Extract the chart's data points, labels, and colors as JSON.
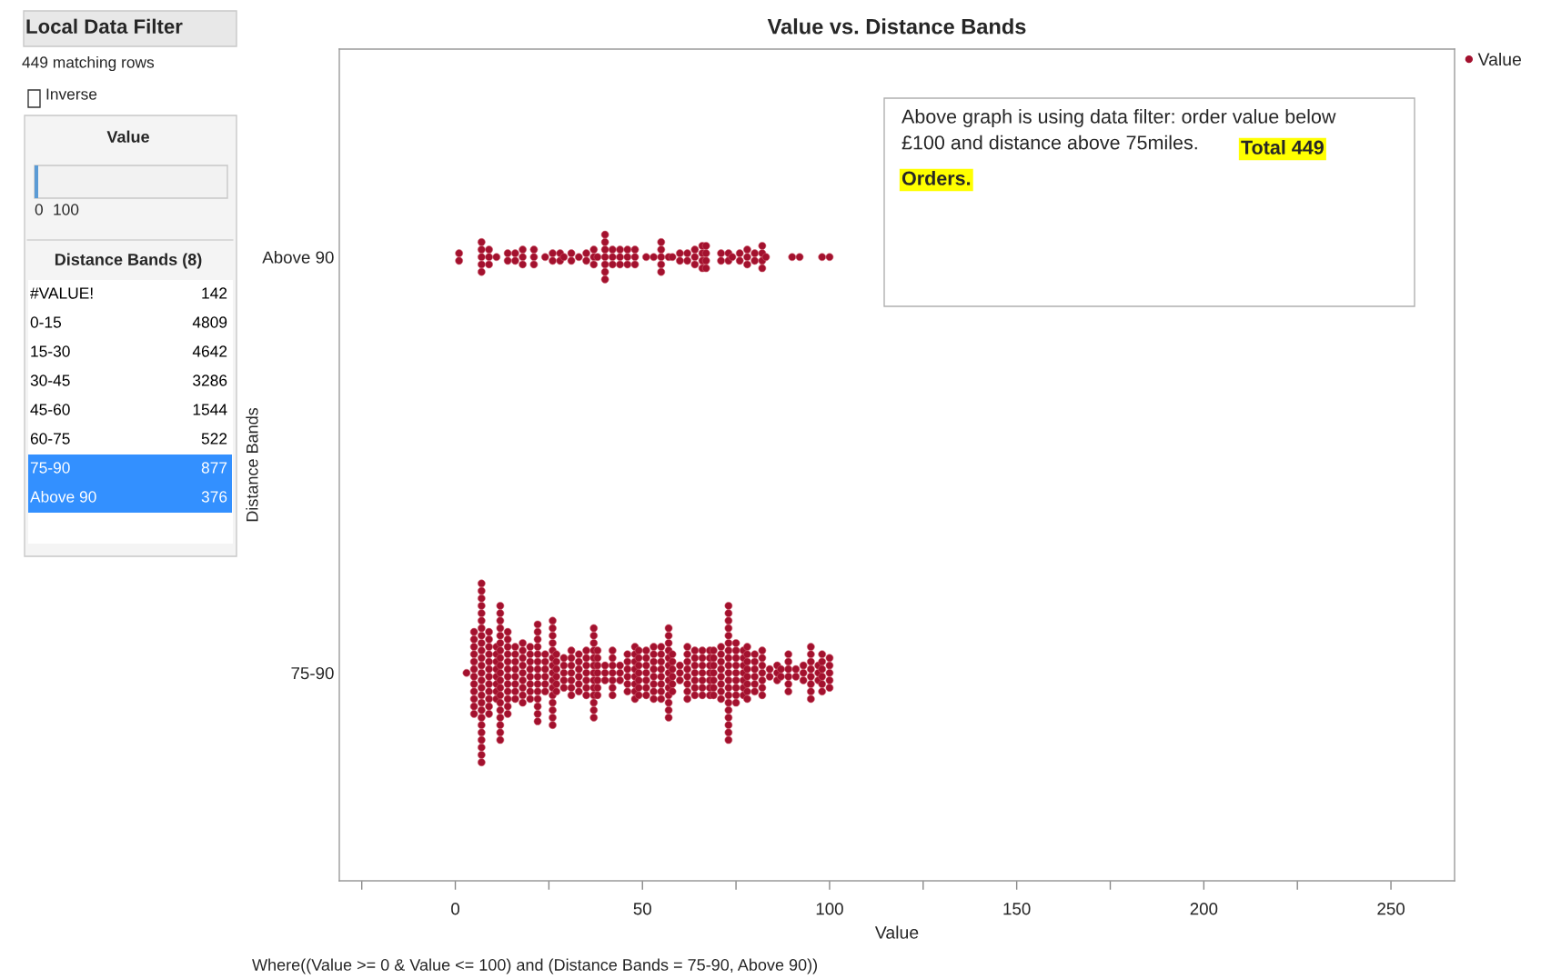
{
  "chart_data": {
    "type": "scatter",
    "orientation": "horizontal",
    "title": "Value vs. Distance Bands",
    "xlabel": "Value",
    "ylabel": "Distance Bands",
    "categories": [
      "Above 90",
      "75-90"
    ],
    "xlim": [
      -31,
      267
    ],
    "xticks": [
      {
        "value": -25,
        "label": null
      },
      0,
      {
        "value": 25,
        "label": null
      },
      50,
      {
        "value": 75,
        "label": null
      },
      100,
      {
        "value": 125,
        "label": null
      },
      150,
      {
        "value": 175,
        "label": null
      },
      200,
      {
        "value": 225,
        "label": null
      },
      250
    ],
    "marker": "circle",
    "legend": "top right",
    "series": [
      {
        "name": "Value",
        "color": "#a3112e",
        "x": [
          "Above 90",
          "Above 90",
          "Above 90",
          "Above 90",
          "Above 90",
          "Above 90",
          "Above 90",
          "Above 90",
          "Above 90",
          "Above 90",
          "Above 90",
          "Above 90",
          "Above 90",
          "Above 90",
          "Above 90",
          "Above 90",
          "Above 90",
          "Above 90",
          "Above 90",
          "Above 90",
          "Above 90",
          "Above 90",
          "Above 90",
          "Above 90",
          "Above 90",
          "Above 90",
          "Above 90",
          "Above 90",
          "Above 90",
          "Above 90",
          "Above 90",
          "Above 90",
          "Above 90",
          "Above 90",
          "Above 90",
          "Above 90",
          "Above 90",
          "Above 90",
          "Above 90",
          "Above 90",
          "Above 90",
          "Above 90",
          "Above 90",
          "Above 90",
          "Above 90",
          "Above 90",
          "Above 90",
          "Above 90",
          "Above 90",
          "Above 90",
          "Above 90",
          "Above 90",
          "Above 90",
          "Above 90",
          "Above 90",
          "Above 90",
          "Above 90",
          "Above 90",
          "Above 90",
          "Above 90",
          "Above 90",
          "Above 90",
          "Above 90",
          "Above 90",
          "Above 90",
          "Above 90",
          "Above 90",
          "Above 90",
          "Above 90",
          "Above 90",
          "Above 90",
          "Above 90",
          "Above 90",
          "Above 90",
          "Above 90",
          "Above 90",
          "Above 90",
          "Above 90",
          "Above 90",
          "Above 90",
          "Above 90",
          "Above 90",
          "Above 90",
          "Above 90",
          "Above 90",
          "Above 90",
          "Above 90",
          "Above 90",
          "Above 90",
          "Above 90",
          "Above 90",
          "Above 90",
          "Above 90",
          "Above 90",
          "Above 90",
          "Above 90",
          "Above 90",
          "Above 90",
          "Above 90",
          "Above 90"
        ],
        "values": [
          1,
          1,
          7,
          7,
          7,
          7,
          7,
          9,
          9,
          9,
          11,
          14,
          14,
          16,
          16,
          18,
          18,
          18,
          21,
          21,
          21,
          24,
          26,
          26,
          28,
          28,
          29,
          31,
          31,
          33,
          35,
          35,
          37,
          37,
          37,
          38,
          40,
          40,
          40,
          40,
          40,
          40,
          40,
          42,
          42,
          42,
          44,
          44,
          44,
          46,
          46,
          46,
          48,
          48,
          48,
          51,
          53,
          55,
          55,
          55,
          55,
          55,
          57,
          58,
          60,
          60,
          62,
          62,
          64,
          64,
          64,
          66,
          66,
          66,
          66,
          67,
          67,
          67,
          67,
          71,
          71,
          73,
          73,
          74,
          76,
          76,
          78,
          78,
          78,
          80,
          80,
          82,
          82,
          82,
          82,
          83,
          90,
          92,
          98,
          100
        ]
      },
      {
        "color": "#a3112e",
        "x": [
          "75-90",
          "75-90",
          "75-90",
          "75-90",
          "75-90",
          "75-90",
          "75-90",
          "75-90",
          "75-90",
          "75-90",
          "75-90",
          "75-90",
          "75-90",
          "75-90",
          "75-90",
          "75-90",
          "75-90",
          "75-90",
          "75-90",
          "75-90",
          "75-90",
          "75-90",
          "75-90",
          "75-90",
          "75-90",
          "75-90",
          "75-90",
          "75-90",
          "75-90",
          "75-90",
          "75-90",
          "75-90",
          "75-90",
          "75-90",
          "75-90",
          "75-90",
          "75-90",
          "75-90",
          "75-90",
          "75-90",
          "75-90",
          "75-90",
          "75-90",
          "75-90",
          "75-90",
          "75-90",
          "75-90",
          "75-90",
          "75-90",
          "75-90",
          "75-90",
          "75-90",
          "75-90",
          "75-90",
          "75-90",
          "75-90",
          "75-90",
          "75-90",
          "75-90",
          "75-90",
          "75-90",
          "75-90",
          "75-90",
          "75-90",
          "75-90",
          "75-90",
          "75-90",
          "75-90",
          "75-90",
          "75-90",
          "75-90",
          "75-90",
          "75-90",
          "75-90",
          "75-90",
          "75-90",
          "75-90",
          "75-90",
          "75-90",
          "75-90",
          "75-90",
          "75-90",
          "75-90",
          "75-90",
          "75-90",
          "75-90",
          "75-90",
          "75-90",
          "75-90",
          "75-90",
          "75-90",
          "75-90",
          "75-90",
          "75-90",
          "75-90",
          "75-90",
          "75-90",
          "75-90",
          "75-90",
          "75-90",
          "75-90",
          "75-90",
          "75-90",
          "75-90",
          "75-90",
          "75-90",
          "75-90",
          "75-90",
          "75-90",
          "75-90",
          "75-90",
          "75-90",
          "75-90",
          "75-90",
          "75-90",
          "75-90",
          "75-90",
          "75-90",
          "75-90",
          "75-90",
          "75-90",
          "75-90",
          "75-90",
          "75-90",
          "75-90",
          "75-90",
          "75-90",
          "75-90",
          "75-90",
          "75-90",
          "75-90",
          "75-90",
          "75-90",
          "75-90",
          "75-90",
          "75-90",
          "75-90",
          "75-90",
          "75-90",
          "75-90",
          "75-90",
          "75-90",
          "75-90",
          "75-90",
          "75-90",
          "75-90",
          "75-90",
          "75-90",
          "75-90",
          "75-90",
          "75-90",
          "75-90",
          "75-90",
          "75-90",
          "75-90",
          "75-90",
          "75-90",
          "75-90",
          "75-90",
          "75-90",
          "75-90",
          "75-90",
          "75-90",
          "75-90",
          "75-90",
          "75-90",
          "75-90",
          "75-90",
          "75-90",
          "75-90",
          "75-90",
          "75-90",
          "75-90",
          "75-90",
          "75-90",
          "75-90",
          "75-90",
          "75-90",
          "75-90",
          "75-90",
          "75-90",
          "75-90",
          "75-90",
          "75-90",
          "75-90",
          "75-90",
          "75-90",
          "75-90",
          "75-90",
          "75-90",
          "75-90",
          "75-90",
          "75-90",
          "75-90",
          "75-90",
          "75-90",
          "75-90",
          "75-90",
          "75-90",
          "75-90",
          "75-90",
          "75-90",
          "75-90",
          "75-90",
          "75-90",
          "75-90",
          "75-90",
          "75-90",
          "75-90",
          "75-90",
          "75-90",
          "75-90",
          "75-90",
          "75-90",
          "75-90",
          "75-90",
          "75-90",
          "75-90",
          "75-90",
          "75-90",
          "75-90",
          "75-90",
          "75-90",
          "75-90",
          "75-90",
          "75-90",
          "75-90",
          "75-90",
          "75-90",
          "75-90",
          "75-90",
          "75-90",
          "75-90",
          "75-90",
          "75-90",
          "75-90",
          "75-90",
          "75-90",
          "75-90",
          "75-90",
          "75-90",
          "75-90",
          "75-90",
          "75-90",
          "75-90",
          "75-90",
          "75-90",
          "75-90",
          "75-90",
          "75-90",
          "75-90",
          "75-90",
          "75-90",
          "75-90",
          "75-90",
          "75-90",
          "75-90",
          "75-90",
          "75-90",
          "75-90",
          "75-90",
          "75-90",
          "75-90",
          "75-90",
          "75-90",
          "75-90",
          "75-90",
          "75-90",
          "75-90",
          "75-90",
          "75-90",
          "75-90",
          "75-90",
          "75-90",
          "75-90",
          "75-90",
          "75-90",
          "75-90",
          "75-90",
          "75-90",
          "75-90",
          "75-90",
          "75-90",
          "75-90",
          "75-90",
          "75-90",
          "75-90",
          "75-90",
          "75-90",
          "75-90",
          "75-90",
          "75-90",
          "75-90",
          "75-90",
          "75-90",
          "75-90",
          "75-90",
          "75-90",
          "75-90",
          "75-90",
          "75-90",
          "75-90",
          "75-90",
          "75-90",
          "75-90",
          "75-90",
          "75-90",
          "75-90",
          "75-90",
          "75-90",
          "75-90",
          "75-90",
          "75-90",
          "75-90",
          "75-90",
          "75-90",
          "75-90",
          "75-90",
          "75-90",
          "75-90",
          "75-90",
          "75-90",
          "75-90",
          "75-90",
          "75-90",
          "75-90",
          "75-90",
          "75-90",
          "75-90",
          "75-90",
          "75-90",
          "75-90",
          "75-90",
          "75-90",
          "75-90",
          "75-90",
          "75-90",
          "75-90",
          "75-90",
          "75-90",
          "75-90",
          "75-90",
          "75-90",
          "75-90",
          "75-90",
          "75-90",
          "75-90",
          "75-90",
          "75-90",
          "75-90",
          "75-90",
          "75-90",
          "75-90",
          "75-90",
          "75-90",
          "75-90",
          "75-90",
          "75-90",
          "75-90",
          "75-90",
          "75-90",
          "75-90",
          "75-90",
          "75-90",
          "75-90",
          "75-90",
          "75-90",
          "75-90",
          "75-90",
          "75-90",
          "75-90",
          "75-90",
          "75-90",
          "75-90",
          "75-90",
          "75-90",
          "75-90",
          "75-90",
          "75-90",
          "75-90",
          "75-90",
          "75-90",
          "75-90",
          "75-90",
          "75-90",
          "75-90",
          "75-90",
          "75-90",
          "75-90",
          "75-90",
          "75-90",
          "75-90",
          "75-90",
          "75-90",
          "75-90",
          "75-90",
          "75-90",
          "75-90",
          "75-90",
          "75-90",
          "75-90",
          "75-90",
          "75-90",
          "75-90",
          "75-90",
          "75-90",
          "75-90",
          "75-90",
          "75-90",
          "75-90",
          "75-90",
          "75-90",
          "75-90",
          "75-90",
          "75-90",
          "75-90",
          "75-90",
          "75-90",
          "75-90"
        ],
        "values": [
          3,
          5,
          5,
          5,
          5,
          5,
          5,
          5,
          5,
          5,
          5,
          5,
          5,
          7,
          7,
          7,
          7,
          7,
          7,
          7,
          7,
          7,
          7,
          7,
          7,
          7,
          7,
          7,
          7,
          7,
          7,
          7,
          7,
          7,
          7,
          7,
          7,
          7,
          9,
          9,
          9,
          9,
          9,
          9,
          9,
          9,
          9,
          9,
          9,
          9,
          11,
          11,
          11,
          11,
          11,
          11,
          11,
          11,
          12,
          12,
          12,
          12,
          12,
          12,
          12,
          12,
          12,
          12,
          12,
          12,
          12,
          12,
          12,
          12,
          12,
          12,
          12,
          14,
          14,
          14,
          14,
          14,
          14,
          14,
          14,
          14,
          14,
          14,
          14,
          16,
          16,
          16,
          16,
          16,
          16,
          16,
          16,
          18,
          18,
          18,
          18,
          18,
          18,
          18,
          18,
          18,
          20,
          20,
          20,
          20,
          20,
          20,
          20,
          20,
          22,
          22,
          22,
          22,
          22,
          22,
          22,
          22,
          22,
          22,
          22,
          22,
          22,
          22,
          24,
          24,
          24,
          24,
          24,
          24,
          26,
          26,
          26,
          26,
          26,
          26,
          26,
          26,
          26,
          26,
          26,
          26,
          26,
          26,
          26,
          27,
          27,
          27,
          27,
          27,
          27,
          29,
          29,
          29,
          29,
          29,
          31,
          31,
          31,
          31,
          31,
          31,
          31,
          33,
          33,
          33,
          33,
          33,
          33,
          35,
          35,
          35,
          35,
          35,
          35,
          35,
          37,
          37,
          37,
          37,
          37,
          37,
          37,
          37,
          37,
          37,
          37,
          37,
          37,
          38,
          38,
          38,
          38,
          38,
          38,
          38,
          40,
          40,
          40,
          42,
          42,
          42,
          42,
          42,
          42,
          42,
          44,
          44,
          44,
          46,
          46,
          46,
          46,
          46,
          46,
          48,
          48,
          48,
          48,
          48,
          48,
          48,
          48,
          49,
          49,
          49,
          49,
          49,
          49,
          49,
          51,
          51,
          51,
          51,
          51,
          51,
          51,
          53,
          53,
          53,
          53,
          53,
          53,
          53,
          53,
          55,
          55,
          55,
          55,
          55,
          55,
          55,
          55,
          57,
          57,
          57,
          57,
          57,
          57,
          57,
          57,
          57,
          57,
          57,
          57,
          57,
          58,
          58,
          58,
          58,
          58,
          58,
          60,
          60,
          60,
          62,
          62,
          62,
          62,
          62,
          62,
          62,
          62,
          64,
          64,
          64,
          64,
          64,
          64,
          64,
          66,
          66,
          66,
          66,
          66,
          66,
          66,
          68,
          68,
          68,
          68,
          68,
          68,
          68,
          69,
          69,
          69,
          69,
          69,
          69,
          69,
          71,
          71,
          71,
          71,
          71,
          71,
          71,
          71,
          73,
          73,
          73,
          73,
          73,
          73,
          73,
          73,
          73,
          73,
          73,
          73,
          73,
          73,
          73,
          73,
          73,
          73,
          73,
          75,
          75,
          75,
          75,
          75,
          75,
          75,
          75,
          75,
          77,
          77,
          77,
          77,
          77,
          77,
          77,
          78,
          78,
          78,
          78,
          78,
          78,
          78,
          78,
          80,
          80,
          80,
          80,
          80,
          80,
          82,
          82,
          82,
          82,
          82,
          82,
          82,
          84,
          84,
          86,
          86,
          86,
          87,
          87,
          89,
          89,
          89,
          89,
          89,
          89,
          91,
          91,
          93,
          93,
          93,
          95,
          95,
          95,
          95,
          95,
          95,
          95,
          95,
          97,
          97,
          97,
          98,
          98,
          98,
          98,
          98,
          98,
          100,
          100,
          100,
          100,
          100
        ]
      }
    ],
    "annotations": [
      "Above graph is using data filter: order value below\n£100 and distance above 75miles.",
      "Total 449",
      "Orders.",
      "Where((Value >= 0 & Value <= 100) and (Distance Bands = 75-90, Above 90))",
      "Local Data Filter",
      "449 matching rows",
      "Inverse",
      "Value",
      "0",
      "100",
      "Distance Bands (8)",
      "#VALUE!",
      "142",
      "0-15",
      "4809",
      "15-30",
      "4642",
      "30-45",
      "3286",
      "45-60",
      "1544",
      "60-75",
      "522",
      "75-90",
      "877",
      "Above 90",
      "376"
    ]
  }
}
